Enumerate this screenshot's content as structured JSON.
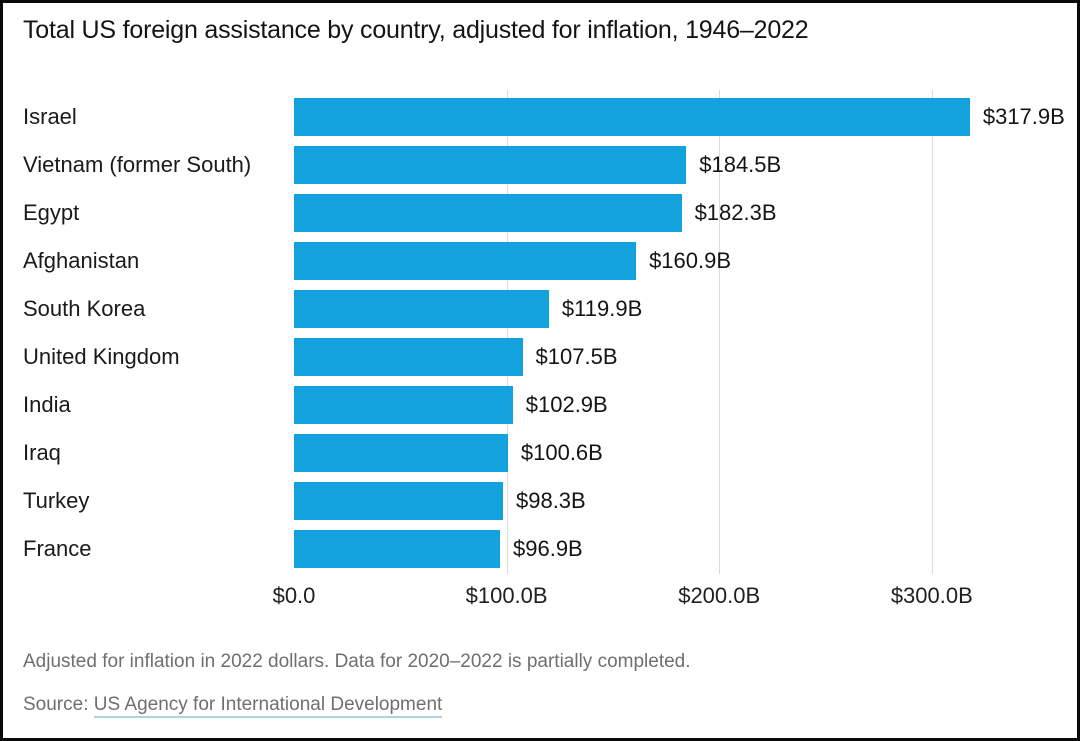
{
  "title": "Total US foreign assistance by country, adjusted for inflation, 1946–2022",
  "chart_data": {
    "type": "bar",
    "orientation": "horizontal",
    "title": "Total US foreign assistance by country, adjusted for inflation, 1946–2022",
    "categories": [
      "Israel",
      "Vietnam (former South)",
      "Egypt",
      "Afghanistan",
      "South Korea",
      "United Kingdom",
      "India",
      "Iraq",
      "Turkey",
      "France"
    ],
    "values": [
      317.9,
      184.5,
      182.3,
      160.9,
      119.9,
      107.5,
      102.9,
      100.6,
      98.3,
      96.9
    ],
    "value_labels": [
      "$317.9B",
      "$184.5B",
      "$182.3B",
      "$160.9B",
      "$119.9B",
      "$107.5B",
      "$102.9B",
      "$100.6B",
      "$98.3B",
      "$96.9B"
    ],
    "unit": "billions of US dollars",
    "x_ticks": [
      0,
      100,
      200,
      300
    ],
    "x_tick_labels": [
      "$0.0",
      "$100.0B",
      "$200.0B",
      "$300.0B"
    ],
    "xlim": [
      0,
      336
    ],
    "grid": true,
    "legend": false,
    "bar_color": "#12a2de",
    "gridline_color": "#dcdcdc"
  },
  "footer": {
    "note": "Adjusted for inflation in 2022 dollars. Data for 2020–2022 is partially completed.",
    "source_prefix": "Source: ",
    "source_link": "US Agency for International Development"
  }
}
